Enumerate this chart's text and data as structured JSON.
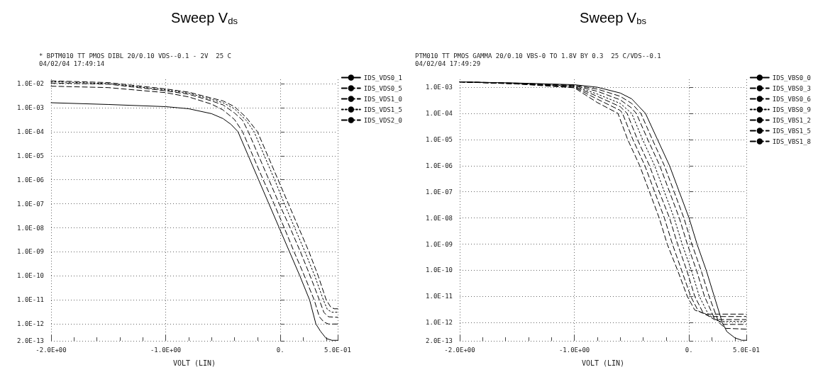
{
  "chart_data": [
    {
      "type": "line",
      "title": "Sweep V$_{ds}$",
      "subtitle": "* BPTM010 TT PMOS DIBL 20/0.10 VDS--0.1 - 2V  25 C\n04/02/04 17:49:14",
      "xlabel": "VOLT (LIN)",
      "xlim": [
        -2,
        0.5
      ],
      "xticks": [
        {
          "value": -2,
          "label": "-2.0E+00"
        },
        {
          "value": -1,
          "label": "-1.0E+00"
        },
        {
          "value": 0,
          "label": "0."
        },
        {
          "value": 0.5,
          "label": "5.0E-01"
        },
        {
          "value": -1.8,
          "label": null
        },
        {
          "value": -1.6,
          "label": null
        },
        {
          "value": -1.4,
          "label": null
        },
        {
          "value": -1.2,
          "label": null
        },
        {
          "value": -0.8,
          "label": null
        },
        {
          "value": -0.6,
          "label": null
        },
        {
          "value": -0.4,
          "label": null
        },
        {
          "value": -0.2,
          "label": null
        },
        {
          "value": 0.2,
          "label": null
        },
        {
          "value": 0.4,
          "label": null
        }
      ],
      "ylim": [
        2e-13,
        0.015
      ],
      "yticks": [
        {
          "value": 0.01,
          "label": "1.0E-02"
        },
        {
          "value": 0.001,
          "label": "1.0E-03"
        },
        {
          "value": 0.0001,
          "label": "1.0E-04"
        },
        {
          "value": 1e-05,
          "label": "1.0E-05"
        },
        {
          "value": 1e-06,
          "label": "1.0E-06"
        },
        {
          "value": 1e-07,
          "label": "1.0E-07"
        },
        {
          "value": 1e-08,
          "label": "1.0E-08"
        },
        {
          "value": 1e-09,
          "label": "1.0E-09"
        },
        {
          "value": 1e-10,
          "label": "1.0E-10"
        },
        {
          "value": 1e-11,
          "label": "1.0E-11"
        },
        {
          "value": 1e-12,
          "label": "1.0E-12"
        },
        {
          "value": 2e-13,
          "label": "2.0E-13"
        }
      ],
      "log": "y",
      "grid": true,
      "legend": "right",
      "series": [
        {
          "name": "IDS_VDS0_1",
          "color": "#000000",
          "line_style": "solid",
          "x": [
            -2,
            -1.5,
            -1,
            -0.8,
            -0.6,
            -0.5,
            -0.43,
            -0.37,
            -0.28,
            -0.19,
            -0.1,
            -0.01,
            0.08,
            0.17,
            0.255,
            0.31,
            0.35,
            0.4,
            0.45,
            0.5
          ],
          "values": [
            0.0016,
            0.00135,
            0.0011,
            0.0009,
            0.00056,
            0.00035,
            0.0002,
            0.0001,
            1e-05,
            1e-06,
            1e-07,
            1e-08,
            1e-09,
            1e-10,
            1e-11,
            1e-12,
            5e-13,
            2.5e-13,
            2.1e-13,
            2.1e-13
          ]
        },
        {
          "name": "IDS_VDS0_5",
          "color": "#000000",
          "line_style": "dashed",
          "x": [
            -2,
            -1.5,
            -1,
            -0.8,
            -0.6,
            -0.5,
            -0.4,
            -0.33,
            -0.24,
            -0.15,
            -0.055,
            0.034,
            0.12,
            0.21,
            0.295,
            0.34,
            0.38,
            0.42,
            0.5
          ],
          "values": [
            0.0078,
            0.0068,
            0.0042,
            0.0028,
            0.0014,
            0.0008,
            0.00032,
            0.0001,
            1e-05,
            1e-06,
            1e-07,
            1e-08,
            1e-09,
            1e-10,
            1e-11,
            2e-12,
            1.2e-12,
            1e-12,
            1e-12
          ]
        },
        {
          "name": "IDS_VDS1_0",
          "color": "#000000",
          "line_style": "dashed",
          "x": [
            -2,
            -1.5,
            -1,
            -0.8,
            -0.6,
            -0.5,
            -0.4,
            -0.33,
            -0.28,
            -0.19,
            -0.1,
            -0.01,
            0.085,
            0.175,
            0.26,
            0.34,
            0.38,
            0.42,
            0.5
          ],
          "values": [
            0.0105,
            0.0095,
            0.005,
            0.0036,
            0.0019,
            0.0013,
            0.0006,
            0.0003,
            0.0001,
            1e-05,
            1e-06,
            1e-07,
            1e-08,
            1e-09,
            1e-10,
            1e-11,
            3e-12,
            2e-12,
            1.9e-12
          ]
        },
        {
          "name": "IDS_VDS1_5",
          "color": "#000000",
          "line_style": "dotted",
          "x": [
            -2,
            -1.5,
            -1,
            -0.8,
            -0.6,
            -0.5,
            -0.4,
            -0.3,
            -0.23,
            -0.14,
            -0.05,
            0.035,
            0.125,
            0.215,
            0.3,
            0.375,
            0.41,
            0.45,
            0.5
          ],
          "values": [
            0.012,
            0.01,
            0.0055,
            0.004,
            0.0022,
            0.0016,
            0.0009,
            0.0003,
            0.0001,
            1e-05,
            1e-06,
            1e-07,
            1e-08,
            1e-09,
            1e-10,
            1e-11,
            4e-12,
            3.1e-12,
            3.1e-12
          ]
        },
        {
          "name": "IDS_VDS2_0",
          "color": "#000000",
          "line_style": "dashed",
          "x": [
            -2,
            -1.5,
            -1,
            -0.8,
            -0.6,
            -0.5,
            -0.4,
            -0.3,
            -0.2,
            -0.11,
            -0.02,
            0.07,
            0.16,
            0.25,
            0.33,
            0.4,
            0.44,
            0.47,
            0.5
          ],
          "values": [
            0.013,
            0.011,
            0.006,
            0.0044,
            0.0025,
            0.0019,
            0.0011,
            0.0004,
            0.0001,
            1e-05,
            1e-06,
            1e-07,
            1e-08,
            1e-09,
            1e-10,
            1e-11,
            5e-12,
            4.3e-12,
            4.3e-12
          ]
        }
      ]
    },
    {
      "type": "line",
      "title": "Sweep V$_{bs}$",
      "subtitle": "PTM010 TT PMOS GAMMA 20/0.10 VBS-0 TO 1.8V BY 0.3  25 C/VDS--0.1\n04/02/04 17:49:29",
      "xlabel": "VOLT (LIN)",
      "xlim": [
        -2,
        0.5
      ],
      "xticks": [
        {
          "value": -2,
          "label": "-2.0E+00"
        },
        {
          "value": -1,
          "label": "-1.0E+00"
        },
        {
          "value": 0,
          "label": "0."
        },
        {
          "value": 0.5,
          "label": "5.0E-01"
        },
        {
          "value": -1.8,
          "label": null
        },
        {
          "value": -1.6,
          "label": null
        },
        {
          "value": -1.4,
          "label": null
        },
        {
          "value": -1.2,
          "label": null
        },
        {
          "value": -0.8,
          "label": null
        },
        {
          "value": -0.6,
          "label": null
        },
        {
          "value": -0.4,
          "label": null
        },
        {
          "value": -0.2,
          "label": null
        },
        {
          "value": 0.2,
          "label": null
        },
        {
          "value": 0.4,
          "label": null
        }
      ],
      "ylim": [
        2e-13,
        0.002
      ],
      "yticks": [
        {
          "value": 0.001,
          "label": "1.0E-03"
        },
        {
          "value": 0.0001,
          "label": "1.0E-04"
        },
        {
          "value": 1e-05,
          "label": "1.0E-05"
        },
        {
          "value": 1e-06,
          "label": "1.0E-06"
        },
        {
          "value": 1e-07,
          "label": "1.0E-07"
        },
        {
          "value": 1e-08,
          "label": "1.0E-08"
        },
        {
          "value": 1e-09,
          "label": "1.0E-09"
        },
        {
          "value": 1e-10,
          "label": "1.0E-10"
        },
        {
          "value": 1e-11,
          "label": "1.0E-11"
        },
        {
          "value": 1e-12,
          "label": "1.0E-12"
        },
        {
          "value": 2e-13,
          "label": "2.0E-13"
        }
      ],
      "log": "y",
      "grid": true,
      "legend": "right",
      "series": [
        {
          "name": "IDS_VBS0_0",
          "color": "#000000",
          "line_style": "solid",
          "x": [
            -2,
            -1.5,
            -1,
            -0.8,
            -0.6,
            -0.5,
            -0.38,
            -0.275,
            -0.17,
            -0.085,
            0.0,
            0.07,
            0.15,
            0.22,
            0.29,
            0.33,
            0.4,
            0.46,
            0.5
          ],
          "values": [
            0.0016,
            0.00145,
            0.00125,
            0.001,
            0.0006,
            0.00036,
            0.0001,
            1e-05,
            1e-06,
            1e-07,
            1e-08,
            1e-09,
            1e-10,
            1e-11,
            1e-12,
            4.5e-13,
            2.6e-13,
            2.1e-13,
            2.1e-13
          ]
        },
        {
          "name": "IDS_VBS0_3",
          "color": "#000000",
          "line_style": "dashed",
          "x": [
            -2,
            -1.5,
            -1,
            -0.8,
            -0.6,
            -0.5,
            -0.42,
            -0.32,
            -0.215,
            -0.13,
            -0.045,
            0.025,
            0.105,
            0.175,
            0.26,
            0.32,
            0.5
          ],
          "values": [
            0.0016,
            0.00143,
            0.0012,
            0.00085,
            0.00045,
            0.00024,
            0.0001,
            1e-05,
            1e-06,
            1e-07,
            1e-08,
            1e-09,
            1e-10,
            1e-11,
            1e-12,
            6e-13,
            5.6e-13
          ]
        },
        {
          "name": "IDS_VBS0_6",
          "color": "#000000",
          "line_style": "dashed",
          "x": [
            -2,
            -1.5,
            -1,
            -0.8,
            -0.6,
            -0.5,
            -0.46,
            -0.36,
            -0.255,
            -0.17,
            -0.085,
            -0.015,
            0.065,
            0.135,
            0.22,
            0.3,
            0.5
          ],
          "values": [
            0.0016,
            0.00141,
            0.00115,
            0.0007,
            0.00033,
            0.00016,
            0.0001,
            1e-05,
            1e-06,
            1e-07,
            1e-08,
            1e-09,
            1e-10,
            1e-11,
            1.5e-12,
            8.5e-13,
            8.5e-13
          ]
        },
        {
          "name": "IDS_VBS0_9",
          "color": "#000000",
          "line_style": "dotted",
          "x": [
            -2,
            -1.5,
            -1,
            -0.8,
            -0.6,
            -0.5,
            -0.405,
            -0.3,
            -0.215,
            -0.13,
            -0.06,
            0.02,
            0.09,
            0.17,
            0.26,
            0.5
          ],
          "values": [
            0.0016,
            0.00139,
            0.0011,
            0.00055,
            0.00024,
            0.0001,
            1e-05,
            1e-06,
            1e-07,
            1e-08,
            1e-09,
            1e-10,
            1e-11,
            2e-12,
            1.1e-12,
            1.1e-12
          ]
        },
        {
          "name": "IDS_VBS1_2",
          "color": "#000000",
          "line_style": "dashed",
          "x": [
            -2,
            -1.5,
            -1,
            -0.8,
            -0.6,
            -0.54,
            -0.45,
            -0.345,
            -0.26,
            -0.17,
            -0.1,
            -0.02,
            0.05,
            0.12,
            0.22,
            0.5
          ],
          "values": [
            0.0016,
            0.00137,
            0.00105,
            0.00045,
            0.00018,
            0.0001,
            1e-05,
            1e-06,
            1e-07,
            1e-08,
            1e-09,
            1e-10,
            1e-11,
            2.5e-12,
            1.3e-12,
            1.3e-12
          ]
        },
        {
          "name": "IDS_VBS1_5",
          "color": "#000000",
          "line_style": "dashed",
          "x": [
            -2,
            -1.5,
            -1,
            -0.8,
            -0.6,
            -0.58,
            -0.49,
            -0.385,
            -0.3,
            -0.215,
            -0.145,
            -0.065,
            0.015,
            0.08,
            0.18,
            0.5
          ],
          "values": [
            0.0016,
            0.00135,
            0.001,
            0.00035,
            0.00013,
            0.0001,
            1e-05,
            1e-06,
            1e-07,
            1e-08,
            1e-09,
            1e-10,
            1e-11,
            2.8e-12,
            1.7e-12,
            1.7e-12
          ]
        },
        {
          "name": "IDS_VBS1_8",
          "color": "#000000",
          "line_style": "dashed",
          "x": [
            -2,
            -1.5,
            -1,
            -0.8,
            -0.62,
            -0.535,
            -0.43,
            -0.345,
            -0.26,
            -0.19,
            -0.1,
            -0.015,
            0.05,
            0.15,
            0.5
          ],
          "values": [
            0.0016,
            0.00133,
            0.00095,
            0.00026,
            0.0001,
            1e-05,
            1e-06,
            1e-07,
            1e-08,
            1e-09,
            1e-10,
            1e-11,
            3e-12,
            2.1e-12,
            2.1e-12
          ]
        }
      ]
    }
  ]
}
